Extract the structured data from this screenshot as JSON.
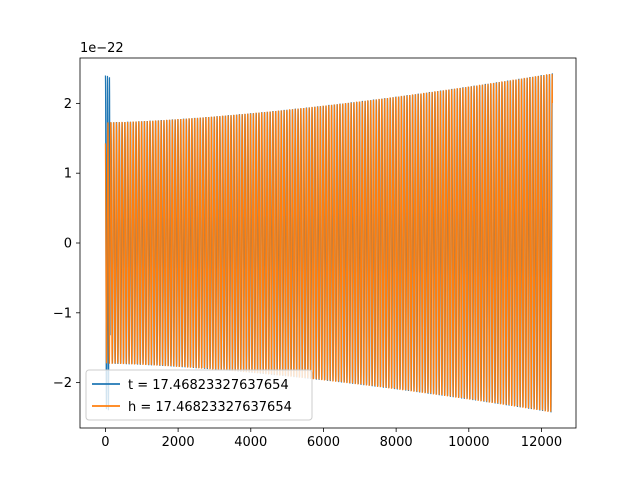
{
  "chart_data": {
    "type": "line",
    "title": "",
    "xlabel": "",
    "ylabel": "",
    "y_scale_label": "1e−22",
    "xlim": [
      -700,
      12950
    ],
    "ylim": [
      -2.65,
      2.65
    ],
    "x_ticks": [
      0,
      2000,
      4000,
      6000,
      8000,
      10000,
      12000
    ],
    "x_tick_labels": [
      "0",
      "2000",
      "4000",
      "6000",
      "8000",
      "10000",
      "12000"
    ],
    "y_ticks": [
      -2,
      -1,
      0,
      1,
      2
    ],
    "y_tick_labels": [
      "−2",
      "−1",
      "0",
      "1",
      "2"
    ],
    "grid": false,
    "legend_position": "lower-left",
    "waveform": {
      "x_start": 0,
      "x_end": 12300,
      "envelope_start": 1.73,
      "envelope_end": 2.43,
      "cycles": 160
    },
    "series": [
      {
        "name": "t = 17.46823327637654",
        "color": "#1f77b4",
        "initial_spike": 2.4
      },
      {
        "name": "h = 17.46823327637654",
        "color": "#ff7f0e"
      }
    ]
  }
}
